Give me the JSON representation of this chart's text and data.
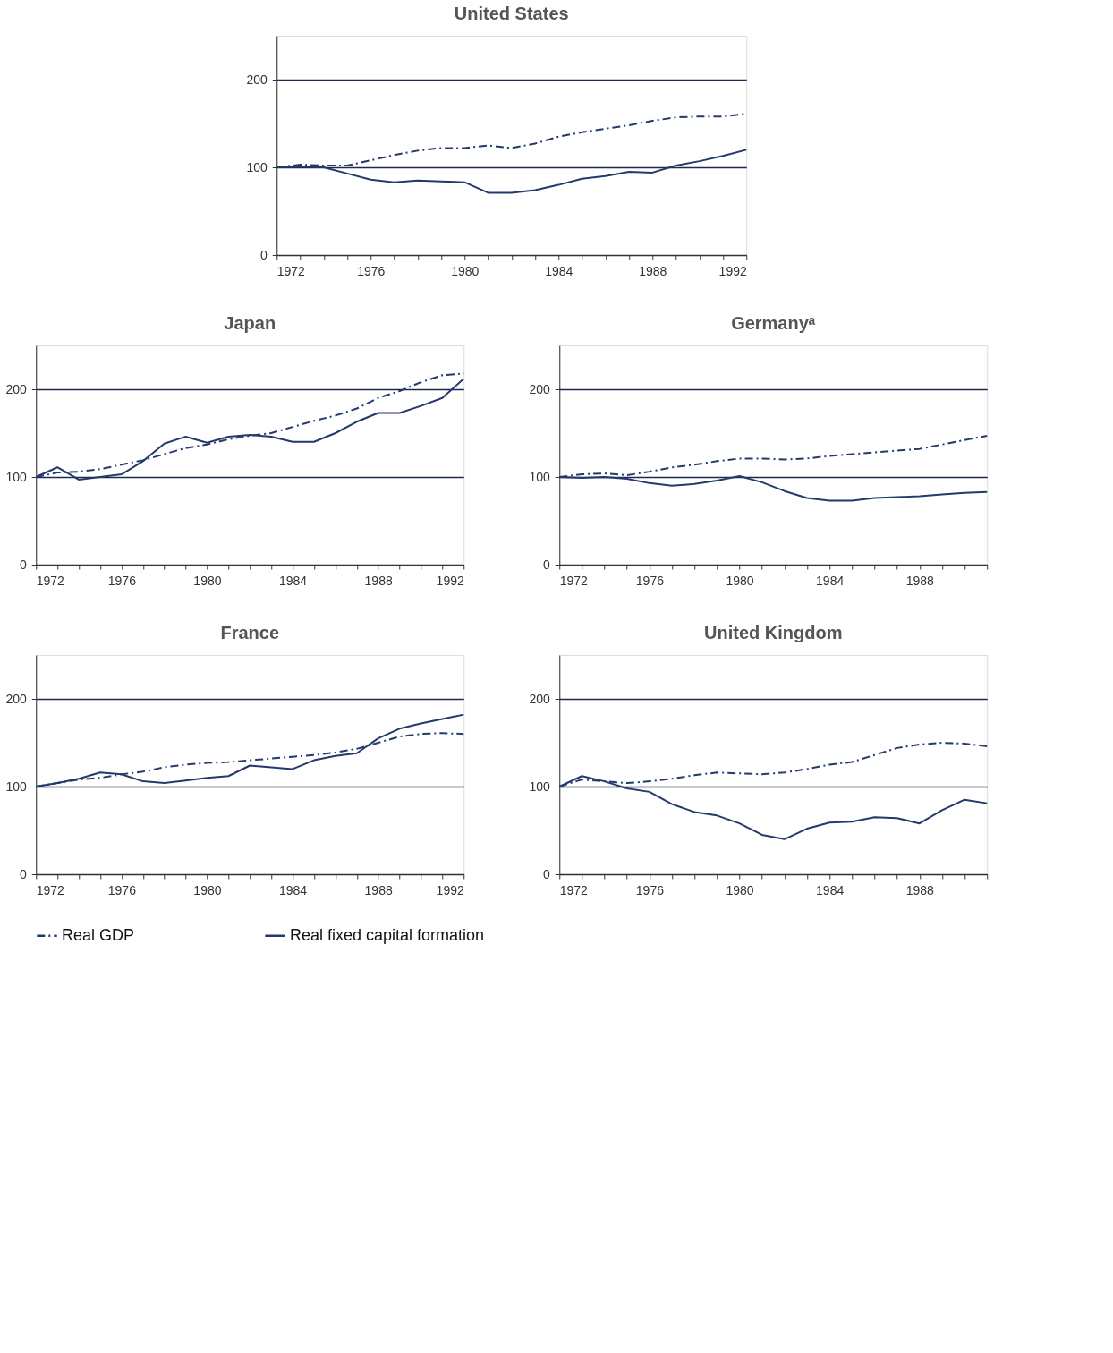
{
  "chart_data": [
    {
      "type": "line",
      "title": "United States",
      "legend": "bottom",
      "x": [
        1972,
        1973,
        1974,
        1975,
        1976,
        1977,
        1978,
        1979,
        1980,
        1981,
        1982,
        1983,
        1984,
        1985,
        1986,
        1987,
        1988,
        1989,
        1990,
        1991,
        1992
      ],
      "xlim": [
        1972,
        1992
      ],
      "xticks": [
        1972,
        {
          "value": 1973,
          "label": null
        },
        {
          "value": 1974,
          "label": null
        },
        {
          "value": 1975,
          "label": null
        },
        1976,
        {
          "value": 1977,
          "label": null
        },
        {
          "value": 1978,
          "label": null
        },
        {
          "value": 1979,
          "label": null
        },
        1980,
        {
          "value": 1981,
          "label": null
        },
        {
          "value": 1982,
          "label": null
        },
        {
          "value": 1983,
          "label": null
        },
        1984,
        {
          "value": 1985,
          "label": null
        },
        {
          "value": 1986,
          "label": null
        },
        {
          "value": 1987,
          "label": null
        },
        1988,
        {
          "value": 1989,
          "label": null
        },
        {
          "value": 1990,
          "label": null
        },
        {
          "value": 1991,
          "label": null
        },
        1992
      ],
      "ylim": [
        0,
        250
      ],
      "yticks": [
        0,
        100,
        200
      ],
      "grid": "y",
      "series": [
        {
          "name": "Real GDP",
          "color": "#243a6b",
          "line_style": "dashed",
          "values": [
            100,
            103,
            102,
            102,
            108,
            114,
            119,
            122,
            122,
            125,
            122,
            127,
            135,
            140,
            144,
            148,
            153,
            157,
            158,
            158,
            161
          ]
        },
        {
          "name": "Real fixed capital formation",
          "color": "#243a6b",
          "line_style": "solid",
          "values": [
            100,
            101,
            100,
            93,
            86,
            83,
            85,
            84,
            83,
            71,
            71,
            74,
            80,
            87,
            90,
            95,
            94,
            102,
            107,
            113,
            120
          ]
        }
      ]
    },
    {
      "type": "line",
      "title": "Japan",
      "legend": "bottom",
      "x": [
        1972,
        1973,
        1974,
        1975,
        1976,
        1977,
        1978,
        1979,
        1980,
        1981,
        1982,
        1983,
        1984,
        1985,
        1986,
        1987,
        1988,
        1989,
        1990,
        1991,
        1992
      ],
      "xlim": [
        1972,
        1992
      ],
      "xticks": [
        1972,
        {
          "value": 1973,
          "label": null
        },
        {
          "value": 1974,
          "label": null
        },
        {
          "value": 1975,
          "label": null
        },
        1976,
        {
          "value": 1977,
          "label": null
        },
        {
          "value": 1978,
          "label": null
        },
        {
          "value": 1979,
          "label": null
        },
        1980,
        {
          "value": 1981,
          "label": null
        },
        {
          "value": 1982,
          "label": null
        },
        {
          "value": 1983,
          "label": null
        },
        1984,
        {
          "value": 1985,
          "label": null
        },
        {
          "value": 1986,
          "label": null
        },
        {
          "value": 1987,
          "label": null
        },
        1988,
        {
          "value": 1989,
          "label": null
        },
        {
          "value": 1990,
          "label": null
        },
        {
          "value": 1991,
          "label": null
        },
        1992
      ],
      "ylim": [
        0,
        250
      ],
      "yticks": [
        0,
        100,
        200
      ],
      "grid": "y",
      "series": [
        {
          "name": "Real GDP",
          "color": "#243a6b",
          "line_style": "dashed",
          "values": [
            100,
            105,
            106,
            109,
            114,
            119,
            126,
            133,
            137,
            143,
            147,
            150,
            157,
            164,
            170,
            178,
            190,
            198,
            208,
            216,
            218
          ]
        },
        {
          "name": "Real fixed capital formation",
          "color": "#243a6b",
          "line_style": "solid",
          "values": [
            100,
            111,
            97,
            100,
            103,
            118,
            138,
            146,
            139,
            146,
            148,
            146,
            140,
            140,
            150,
            163,
            173,
            173,
            181,
            190,
            212
          ]
        }
      ]
    },
    {
      "type": "line",
      "title": "Germanyᵃ",
      "legend": "bottom",
      "x": [
        1972,
        1973,
        1974,
        1975,
        1976,
        1977,
        1978,
        1979,
        1980,
        1981,
        1982,
        1983,
        1984,
        1985,
        1986,
        1987,
        1988,
        1989,
        1990,
        1991
      ],
      "xlim": [
        1972,
        1991
      ],
      "xticks": [
        1972,
        {
          "value": 1973,
          "label": null
        },
        {
          "value": 1974,
          "label": null
        },
        {
          "value": 1975,
          "label": null
        },
        1976,
        {
          "value": 1977,
          "label": null
        },
        {
          "value": 1978,
          "label": null
        },
        {
          "value": 1979,
          "label": null
        },
        1980,
        {
          "value": 1981,
          "label": null
        },
        {
          "value": 1982,
          "label": null
        },
        {
          "value": 1983,
          "label": null
        },
        1984,
        {
          "value": 1985,
          "label": null
        },
        {
          "value": 1986,
          "label": null
        },
        {
          "value": 1987,
          "label": null
        },
        1988,
        {
          "value": 1989,
          "label": null
        },
        {
          "value": 1990,
          "label": null
        },
        {
          "value": 1991,
          "label": null
        }
      ],
      "ylim": [
        0,
        250
      ],
      "yticks": [
        0,
        100,
        200
      ],
      "grid": "y",
      "series": [
        {
          "name": "Real GDP",
          "color": "#243a6b",
          "line_style": "dashed",
          "values": [
            100,
            103,
            104,
            102,
            106,
            111,
            114,
            118,
            121,
            121,
            120,
            121,
            124,
            126,
            128,
            130,
            132,
            137,
            142,
            147
          ]
        },
        {
          "name": "Real fixed capital formation",
          "color": "#243a6b",
          "line_style": "solid",
          "values": [
            100,
            99,
            100,
            98,
            93,
            90,
            92,
            96,
            101,
            94,
            84,
            76,
            73,
            73,
            76,
            77,
            78,
            80,
            82,
            83
          ]
        }
      ]
    },
    {
      "type": "line",
      "title": "France",
      "legend": "bottom",
      "x": [
        1972,
        1973,
        1974,
        1975,
        1976,
        1977,
        1978,
        1979,
        1980,
        1981,
        1982,
        1983,
        1984,
        1985,
        1986,
        1987,
        1988,
        1989,
        1990,
        1991,
        1992
      ],
      "xlim": [
        1972,
        1992
      ],
      "xticks": [
        1972,
        {
          "value": 1973,
          "label": null
        },
        {
          "value": 1974,
          "label": null
        },
        {
          "value": 1975,
          "label": null
        },
        1976,
        {
          "value": 1977,
          "label": null
        },
        {
          "value": 1978,
          "label": null
        },
        {
          "value": 1979,
          "label": null
        },
        1980,
        {
          "value": 1981,
          "label": null
        },
        {
          "value": 1982,
          "label": null
        },
        {
          "value": 1983,
          "label": null
        },
        1984,
        {
          "value": 1985,
          "label": null
        },
        {
          "value": 1986,
          "label": null
        },
        {
          "value": 1987,
          "label": null
        },
        1988,
        {
          "value": 1989,
          "label": null
        },
        {
          "value": 1990,
          "label": null
        },
        {
          "value": 1991,
          "label": null
        },
        1992
      ],
      "ylim": [
        0,
        250
      ],
      "yticks": [
        0,
        100,
        200
      ],
      "grid": "y",
      "series": [
        {
          "name": "Real GDP",
          "color": "#243a6b",
          "line_style": "dashed",
          "values": [
            100,
            104,
            108,
            110,
            114,
            117,
            122,
            125,
            127,
            128,
            130,
            132,
            134,
            136,
            139,
            143,
            150,
            157,
            160,
            161,
            160
          ]
        },
        {
          "name": "Real fixed capital formation",
          "color": "#243a6b",
          "line_style": "solid",
          "values": [
            100,
            104,
            109,
            116,
            114,
            106,
            104,
            107,
            110,
            112,
            124,
            122,
            120,
            130,
            135,
            138,
            155,
            166,
            172,
            177,
            182
          ]
        }
      ]
    },
    {
      "type": "line",
      "title": "United Kingdom",
      "legend": "bottom",
      "x": [
        1972,
        1973,
        1974,
        1975,
        1976,
        1977,
        1978,
        1979,
        1980,
        1981,
        1982,
        1983,
        1984,
        1985,
        1986,
        1987,
        1988,
        1989,
        1990,
        1991
      ],
      "xlim": [
        1972,
        1991
      ],
      "xticks": [
        1972,
        {
          "value": 1973,
          "label": null
        },
        {
          "value": 1974,
          "label": null
        },
        {
          "value": 1975,
          "label": null
        },
        1976,
        {
          "value": 1977,
          "label": null
        },
        {
          "value": 1978,
          "label": null
        },
        {
          "value": 1979,
          "label": null
        },
        1980,
        {
          "value": 1981,
          "label": null
        },
        {
          "value": 1982,
          "label": null
        },
        {
          "value": 1983,
          "label": null
        },
        1984,
        {
          "value": 1985,
          "label": null
        },
        {
          "value": 1986,
          "label": null
        },
        {
          "value": 1987,
          "label": null
        },
        1988,
        {
          "value": 1989,
          "label": null
        },
        {
          "value": 1990,
          "label": null
        },
        {
          "value": 1991,
          "label": null
        }
      ],
      "ylim": [
        0,
        250
      ],
      "yticks": [
        0,
        100,
        200
      ],
      "grid": "y",
      "series": [
        {
          "name": "Real GDP",
          "color": "#243a6b",
          "line_style": "dashed",
          "values": [
            100,
            108,
            106,
            104,
            106,
            109,
            113,
            116,
            115,
            114,
            116,
            120,
            125,
            128,
            136,
            144,
            148,
            150,
            149,
            146
          ]
        },
        {
          "name": "Real fixed capital formation",
          "color": "#243a6b",
          "line_style": "solid",
          "values": [
            100,
            112,
            106,
            98,
            94,
            80,
            71,
            67,
            58,
            45,
            40,
            52,
            59,
            60,
            65,
            64,
            58,
            73,
            85,
            81
          ]
        }
      ]
    }
  ]
}
